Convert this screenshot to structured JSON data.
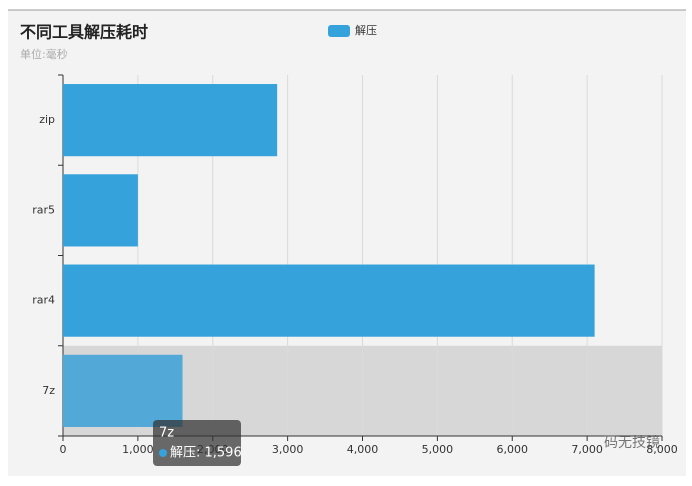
{
  "chart_data": {
    "type": "hbar",
    "title": "不同工具解压耗时",
    "subtitle": "单位:毫秒",
    "categories": [
      "7z",
      "rar4",
      "rar5",
      "zip"
    ],
    "series": [
      {
        "name": "解压",
        "color": "#35a2dc",
        "values": [
          1596,
          7100,
          1000,
          2860
        ]
      }
    ],
    "xlim": [
      0,
      8000
    ],
    "xticks": [
      0,
      {
        "value": 1000,
        "label": "1,000"
      },
      {
        "value": 2000,
        "label": "2,000"
      },
      {
        "value": 3000,
        "label": "3,000"
      },
      {
        "value": 4000,
        "label": "4,000"
      },
      {
        "value": 5000,
        "label": "5,000"
      },
      {
        "value": 6000,
        "label": "6,000"
      },
      {
        "value": 7000,
        "label": "7,000"
      },
      {
        "value": 8000,
        "label": "8,000"
      }
    ],
    "grid": true,
    "legend": "top",
    "highlight_color": "#52a8d6",
    "tooltip": {
      "title": "7z",
      "text": "解压: 1,596"
    },
    "watermark": "码无技镜"
  }
}
